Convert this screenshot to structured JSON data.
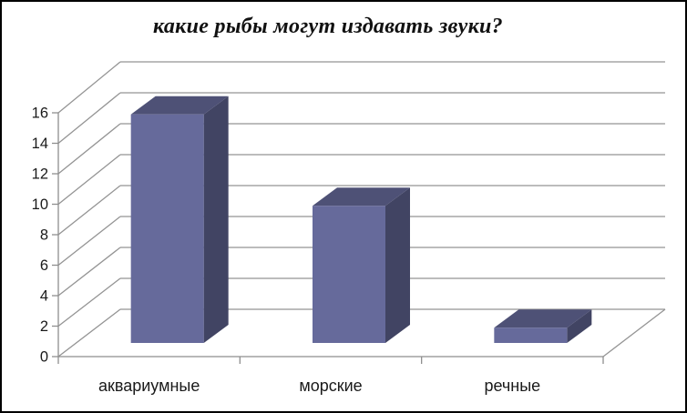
{
  "frame": {
    "background": "#ffffff",
    "border_color": "#000000"
  },
  "chart_data": {
    "type": "bar",
    "projection": "3d-column",
    "title": "какие рыбы могут издавать звуки?",
    "categories": [
      "аквариумные",
      "морские",
      "речные"
    ],
    "values": [
      15,
      9,
      1
    ],
    "ylim": [
      0,
      16
    ],
    "ytick_step": 2,
    "yticks": [
      0,
      2,
      4,
      6,
      8,
      10,
      12,
      14,
      16
    ],
    "xlabel": "",
    "ylabel": "",
    "grid": true,
    "legend": false,
    "colors": {
      "bar_front": "#666A9B",
      "bar_top": "#4E5176",
      "bar_side": "#414463",
      "grid_line": "#949494",
      "axis_line": "#8E8E8E",
      "label_text": "#1A1A1A",
      "title_text": "#111111"
    }
  }
}
